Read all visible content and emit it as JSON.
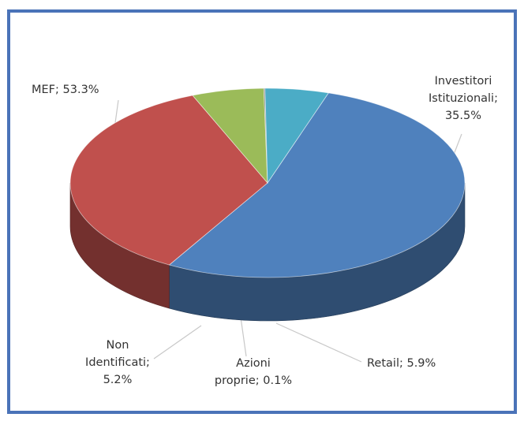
{
  "chart_data": {
    "type": "pie",
    "title": "",
    "three_d": true,
    "legend": "none",
    "slices": [
      {
        "name": "MEF",
        "value": 53.3,
        "color": "#4f81bd"
      },
      {
        "name": "Investitori Istituzionali",
        "value": 35.5,
        "color": "#c0504d"
      },
      {
        "name": "Retail",
        "value": 5.9,
        "color": "#9bbb59"
      },
      {
        "name": "Azioni proprie",
        "value": 0.1,
        "color": "#7f7f7f"
      },
      {
        "name": "Non Identificati",
        "value": 5.2,
        "color": "#4bacc6"
      }
    ],
    "data_labels": [
      [
        "MEF; 53.3%"
      ],
      [
        "Investitori",
        "Istituzionali;",
        "35.5%"
      ],
      [
        "Retail; 5.9%"
      ],
      [
        "Azioni",
        "proprie; 0.1%"
      ],
      [
        "Non",
        "Identificati;",
        "5.2%"
      ]
    ]
  }
}
